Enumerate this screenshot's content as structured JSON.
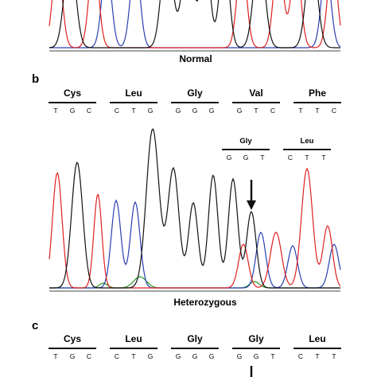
{
  "panels": {
    "a": {
      "caption": "Normal"
    },
    "b": {
      "label": "b",
      "codons": [
        {
          "aa": "Cys",
          "bases": [
            "T",
            "G",
            "C"
          ]
        },
        {
          "aa": "Leu",
          "bases": [
            "C",
            "T",
            "G"
          ]
        },
        {
          "aa": "Gly",
          "bases": [
            "G",
            "G",
            "G"
          ]
        },
        {
          "aa": "Val",
          "bases": [
            "G",
            "T",
            "C"
          ]
        },
        {
          "aa": "Phe",
          "bases": [
            "T",
            "T",
            "C"
          ]
        }
      ],
      "alt_codons": [
        {
          "aa": "Gly",
          "bases": [
            "G",
            "G",
            "T"
          ]
        },
        {
          "aa": "Leu",
          "bases": [
            "C",
            "T",
            "T"
          ]
        }
      ],
      "caption": "Heterozygous"
    },
    "c": {
      "label": "c",
      "codons": [
        {
          "aa": "Cys",
          "bases": [
            "T",
            "G",
            "C"
          ]
        },
        {
          "aa": "Leu",
          "bases": [
            "C",
            "T",
            "G"
          ]
        },
        {
          "aa": "Gly",
          "bases": [
            "G",
            "G",
            "G"
          ]
        },
        {
          "aa": "Gly",
          "bases": [
            "G",
            "G",
            "T"
          ]
        },
        {
          "aa": "Leu",
          "bases": [
            "C",
            "T",
            "T"
          ]
        }
      ]
    }
  },
  "trace_colors": {
    "G": "#111111",
    "T": "#e02020",
    "C": "#2a3fb0",
    "A": "#2a9a2a"
  }
}
